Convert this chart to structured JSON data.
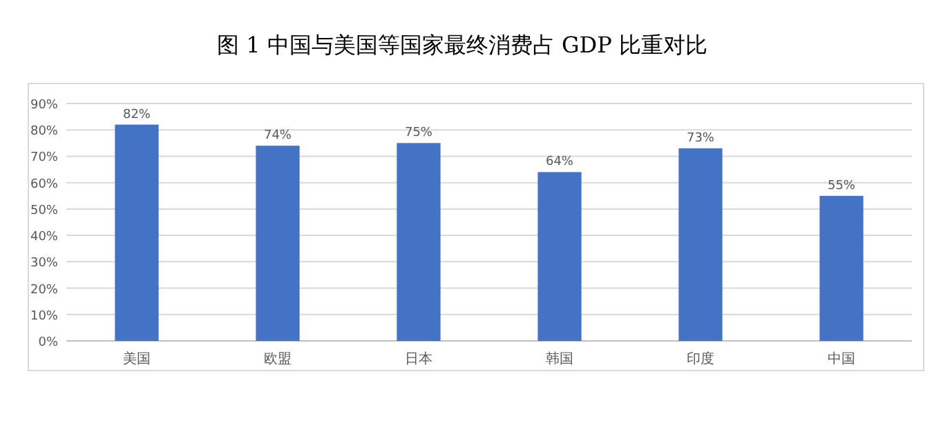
{
  "chart_data": {
    "type": "bar",
    "title": "图 1  中国与美国等国家最终消费占 GDP 比重对比",
    "categories": [
      "美国",
      "欧盟",
      "日本",
      "韩国",
      "印度",
      "中国"
    ],
    "values": [
      82,
      74,
      75,
      64,
      73,
      55
    ],
    "value_labels": [
      "82%",
      "74%",
      "75%",
      "64%",
      "73%",
      "55%"
    ],
    "color": "#4472c4",
    "ylim": [
      0,
      90
    ],
    "yticks": [
      {
        "value": 0,
        "label": "0%"
      },
      {
        "value": 10,
        "label": "10%"
      },
      {
        "value": 20,
        "label": "20%"
      },
      {
        "value": 30,
        "label": "30%"
      },
      {
        "value": 40,
        "label": "40%"
      },
      {
        "value": 50,
        "label": "50%"
      },
      {
        "value": 60,
        "label": "60%"
      },
      {
        "value": 70,
        "label": "70%"
      },
      {
        "value": 80,
        "label": "80%"
      },
      {
        "value": 90,
        "label": "90%"
      }
    ],
    "grid": "y"
  }
}
